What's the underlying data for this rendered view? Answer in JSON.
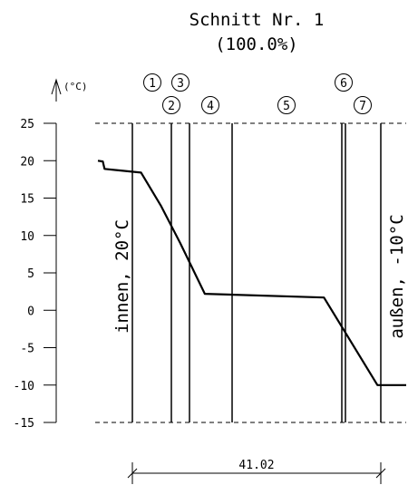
{
  "chart_data": {
    "type": "line",
    "title": "Schnitt Nr. 1",
    "subtitle": "(100.0%)",
    "ylabel": "(°C)",
    "ylim": [
      -15,
      25
    ],
    "yticks": [
      25,
      20,
      15,
      10,
      5,
      0,
      -5,
      -10,
      -15
    ],
    "layer_markers": [
      "1",
      "2",
      "3",
      "4",
      "5",
      "6",
      "7"
    ],
    "inside_label": "innen, 20°C",
    "outside_label": "außen, -10°C",
    "dimension_label": "41.02",
    "temperature_profile": [
      {
        "x": 0.0,
        "y": 20.0
      },
      {
        "x": 1.2,
        "y": 19.9
      },
      {
        "x": 1.6,
        "y": 18.9
      },
      {
        "x": 10.5,
        "y": 18.4
      },
      {
        "x": 15.3,
        "y": 14.0
      },
      {
        "x": 20.0,
        "y": 9.0
      },
      {
        "x": 26.0,
        "y": 2.2
      },
      {
        "x": 55.0,
        "y": 1.7
      },
      {
        "x": 68.0,
        "y": -10.0
      },
      {
        "x": 75.0,
        "y": -10.0
      }
    ]
  }
}
